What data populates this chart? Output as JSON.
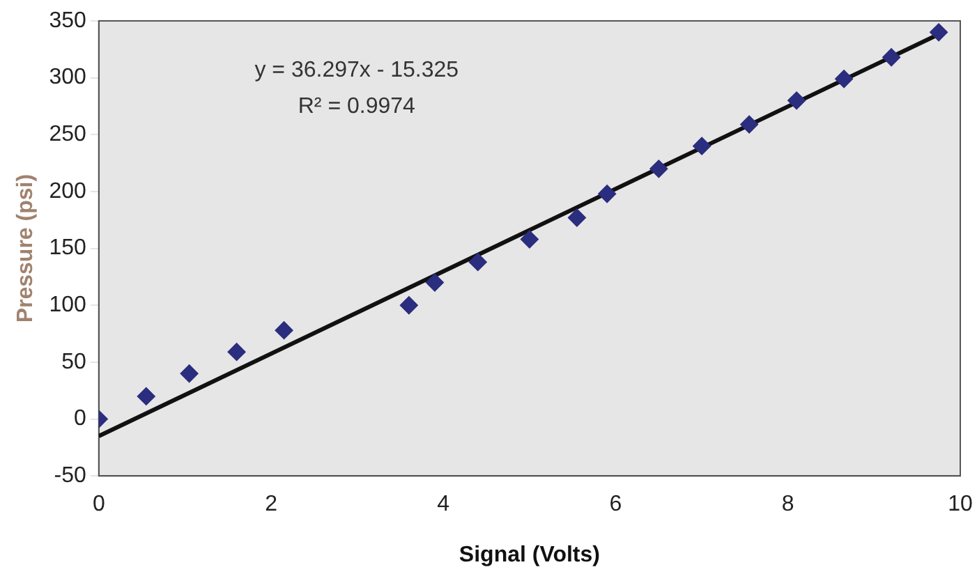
{
  "chart_data": {
    "type": "scatter",
    "xlabel": "Signal (Volts)",
    "ylabel": "Pressure (psi)",
    "annotations": [
      "y = 36.297x - 15.325",
      "R² = 0.9974"
    ],
    "xlim": [
      0,
      10
    ],
    "xticks": [
      0,
      2,
      4,
      6,
      8,
      10
    ],
    "ylim": [
      -50,
      350
    ],
    "yticks": [
      -50,
      0,
      50,
      100,
      150,
      200,
      250,
      300,
      350
    ],
    "grid": false,
    "legend": false,
    "marker": "diamond",
    "series": [
      {
        "color": "#2b2d7e",
        "x": [
          0,
          0.55,
          1.05,
          1.6,
          2.15,
          3.6,
          3.9,
          4.4,
          5,
          5.55,
          5.9,
          6.5,
          7,
          7.55,
          8.1,
          8.65,
          9.2,
          9.75
        ],
        "values": [
          0,
          20,
          40,
          59,
          78,
          100,
          120,
          138,
          158,
          177,
          198,
          220,
          240,
          259,
          280,
          299,
          318,
          340
        ]
      },
      {
        "type": "line",
        "color": "#111111",
        "x": [
          0,
          9.8
        ],
        "values": [
          -15,
          340
        ],
        "marker": "none"
      }
    ]
  }
}
